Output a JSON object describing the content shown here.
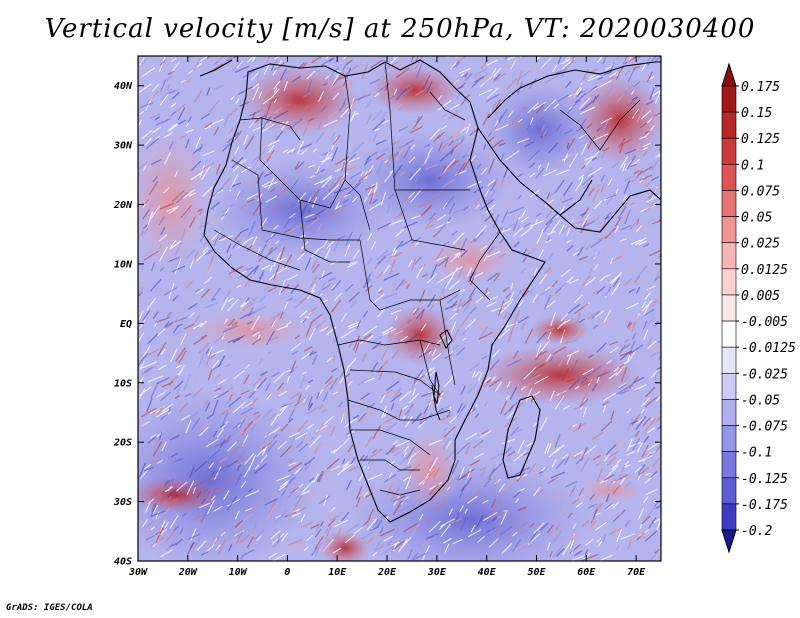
{
  "title": "Vertical velocity [m/s] at 250hPa, VT: 2020030400",
  "credit": "GrADS: IGES/COLA",
  "map": {
    "lon_range": [
      -30,
      75
    ],
    "lat_range": [
      -40,
      45
    ],
    "lat_ticks": [
      {
        "value": 40,
        "label": "40N"
      },
      {
        "value": 30,
        "label": "30N"
      },
      {
        "value": 20,
        "label": "20N"
      },
      {
        "value": 10,
        "label": "10N"
      },
      {
        "value": 0,
        "label": "EQ"
      },
      {
        "value": -10,
        "label": "10S"
      },
      {
        "value": -20,
        "label": "20S"
      },
      {
        "value": -30,
        "label": "30S"
      },
      {
        "value": -40,
        "label": "40S"
      }
    ],
    "lon_ticks": [
      {
        "value": -30,
        "label": "30W"
      },
      {
        "value": -20,
        "label": "20W"
      },
      {
        "value": -10,
        "label": "10W"
      },
      {
        "value": 0,
        "label": "0"
      },
      {
        "value": 10,
        "label": "10E"
      },
      {
        "value": 20,
        "label": "20E"
      },
      {
        "value": 30,
        "label": "30E"
      },
      {
        "value": 40,
        "label": "40E"
      },
      {
        "value": 50,
        "label": "50E"
      },
      {
        "value": 60,
        "label": "60E"
      },
      {
        "value": 70,
        "label": "70E"
      }
    ]
  },
  "colorbar": {
    "levels": [
      {
        "label": "0.175",
        "color": "#a01818"
      },
      {
        "label": "0.15",
        "color": "#b82626"
      },
      {
        "label": "0.125",
        "color": "#cc3a3a"
      },
      {
        "label": "0.1",
        "color": "#dc5454"
      },
      {
        "label": "0.075",
        "color": "#e87474"
      },
      {
        "label": "0.05",
        "color": "#f09494"
      },
      {
        "label": "0.025",
        "color": "#f6b4b4"
      },
      {
        "label": "0.0125",
        "color": "#fad0d0"
      },
      {
        "label": "0.005",
        "color": "#fde8e8"
      },
      {
        "label": "-0.005",
        "color": "#ffffff"
      },
      {
        "label": "-0.0125",
        "color": "#e6e6fa"
      },
      {
        "label": "-0.025",
        "color": "#ccccf6"
      },
      {
        "label": "-0.05",
        "color": "#b0b0f0"
      },
      {
        "label": "-0.075",
        "color": "#9494e8"
      },
      {
        "label": "-0.1",
        "color": "#7878e0"
      },
      {
        "label": "-0.125",
        "color": "#5c5cd4"
      },
      {
        "label": "-0.175",
        "color": "#3c3cc4"
      },
      {
        "label": "-0.2",
        "color": "#2020a8"
      }
    ],
    "top_cap_color": "#8a1010",
    "bottom_cap_color": "#1a1a90"
  }
}
